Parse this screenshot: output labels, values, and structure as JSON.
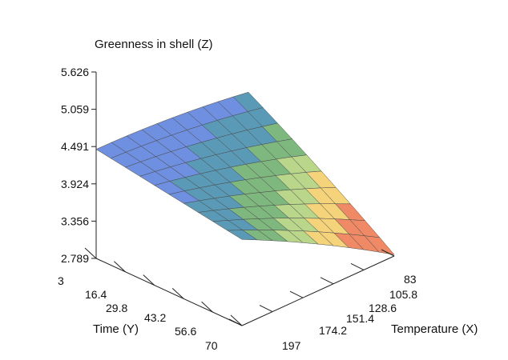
{
  "chart_data": {
    "type": "surface3d",
    "title": "Greenness in shell (Z)",
    "xlabel": "Temperature (X)",
    "ylabel": "Time (Y)",
    "zlabel": "Greenness in shell (Z)",
    "x_ticks": [
      "83",
      "105.8",
      "128.6",
      "151.4",
      "174.2",
      "197"
    ],
    "y_ticks": [
      "3",
      "16.4",
      "29.8",
      "43.2",
      "56.6",
      "70"
    ],
    "z_ticks": [
      "2.789",
      "3.356",
      "3.924",
      "4.491",
      "5.059",
      "5.626"
    ],
    "xlim": [
      83,
      197
    ],
    "ylim": [
      3,
      70
    ],
    "zlim": [
      2.789,
      5.626
    ],
    "surface": {
      "description_of_model": "quadratic response surface",
      "corner_values": {
        "x83_y3": 4.26,
        "x197_y3": 4.45,
        "x83_y70": 2.95,
        "x197_y70": 4.1
      },
      "grid_steps": 10
    },
    "colormap": [
      "#f08a66",
      "#f5d37a",
      "#b9d68a",
      "#7fb87e",
      "#5a9ab6",
      "#6f8fe0"
    ]
  }
}
